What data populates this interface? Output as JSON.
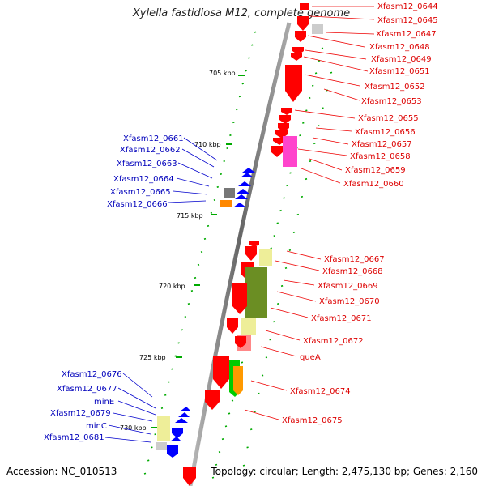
{
  "title": "Xylella fastidiosa M12, complete genome",
  "footer": {
    "accession": "Accession: NC_010513",
    "summary": "Topology: circular; Length: 2,475,130 bp; Genes: 2,160"
  },
  "scale_labels": [
    "705 kbp",
    "710 kbp",
    "715 kbp",
    "720 kbp",
    "725 kbp",
    "730 kbp"
  ],
  "right_labels": [
    "Xfasm12_0644",
    "Xfasm12_0645",
    "Xfasm12_0647",
    "Xfasm12_0648",
    "Xfasm12_0649",
    "Xfasm12_0651",
    "Xfasm12_0652",
    "Xfasm12_0653",
    "Xfasm12_0655",
    "Xfasm12_0656",
    "Xfasm12_0657",
    "Xfasm12_0658",
    "Xfasm12_0659",
    "Xfasm12_0660",
    "Xfasm12_0667",
    "Xfasm12_0668",
    "Xfasm12_0669",
    "Xfasm12_0670",
    "Xfasm12_0671",
    "Xfasm12_0672",
    "queA",
    "Xfasm12_0674",
    "Xfasm12_0675"
  ],
  "left_labels": [
    "Xfasm12_0661",
    "Xfasm12_0662",
    "Xfasm12_0663",
    "Xfasm12_0664",
    "Xfasm12_0665",
    "Xfasm12_0666",
    "Xfasm12_0676",
    "Xfasm12_0677",
    "minE",
    "Xfasm12_0679",
    "minC",
    "Xfasm12_0681"
  ],
  "colors": {
    "forward_gene": "#ff0000",
    "reverse_gene": "#0000ff",
    "right_label": "#dd0000",
    "left_label": "#0000bb",
    "backbone": "#888888",
    "tick": "#00aa00"
  }
}
